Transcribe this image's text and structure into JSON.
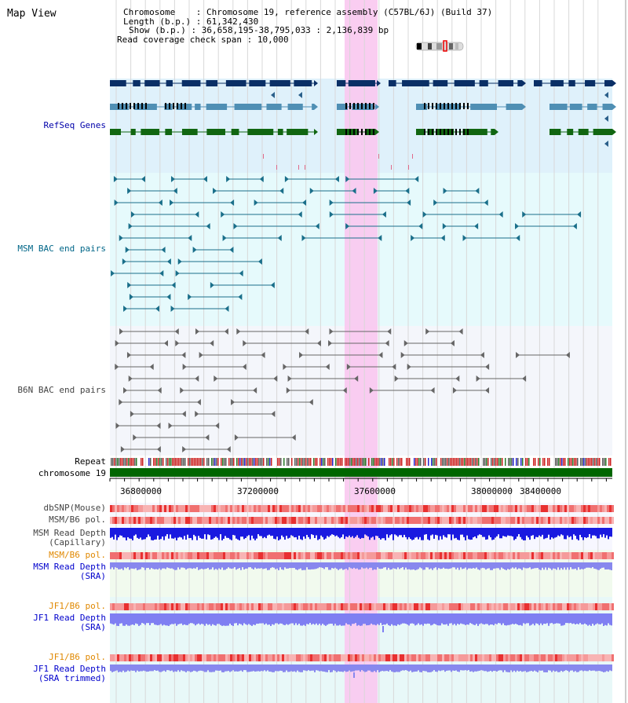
{
  "header": {
    "title": "Map View",
    "chromosome_label": "Chromosome",
    "chromosome_value": "Chromosome 19, reference assembly (C57BL/6J) (Build 37)",
    "length_label": "Length (b.p.)",
    "length_value": "61,342,430",
    "show_label": "Show (b.p.)",
    "show_value": "36,658,195-38,795,033 : 2,136,839 bp",
    "coverage_label": "Read coverage check span",
    "coverage_value": "10,000"
  },
  "tracks": {
    "refseq": "RefSeq Genes",
    "msm_bac": "MSM BAC end pairs",
    "b6n_bac": "B6N BAC end pairs",
    "repeat": "Repeat",
    "chromosome": "chromosome 19",
    "dbsnp": "dbSNP(Mouse)",
    "msm_b6_pol_1": "MSM/B6 pol.",
    "msm_depth_cap_1": "MSM Read Depth",
    "msm_depth_cap_2": "(Capillary)",
    "msm_b6_pol_2": "MSM/B6 pol.",
    "msm_depth_sra_1": "MSM Read Depth",
    "msm_depth_sra_2": "(SRA)",
    "jf1_b6_pol_1": "JF1/B6 pol.",
    "jf1_depth_sra_1": "JF1 Read Depth",
    "jf1_depth_sra_2": "(SRA)",
    "jf1_b6_pol_2": "JF1/B6 pol.",
    "jf1_depth_trim_1": "JF1 Read Depth",
    "jf1_depth_trim_2": "(SRA trimmed)"
  },
  "axis": {
    "ticks": [
      "36800000",
      "37200000",
      "37600000",
      "38000000",
      "38400000"
    ]
  },
  "colors": {
    "refseq_label": "#0000aa",
    "msm_label": "#006688",
    "b6n_label": "#444444",
    "orange_label": "#e08800",
    "blue_label": "#0000cc",
    "highlight": "#f9c8f0",
    "chromosome_bar": "#006600"
  }
}
